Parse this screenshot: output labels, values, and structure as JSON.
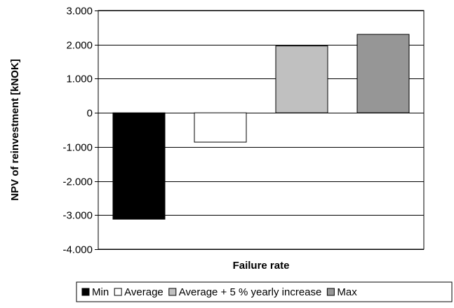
{
  "chart_data": {
    "type": "bar",
    "title": "",
    "xlabel": "Failure rate",
    "ylabel": "NPV of reinvestment [kNOK]",
    "ylim": [
      -4000,
      3000
    ],
    "ytick_values": [
      3000,
      2000,
      1000,
      0,
      -1000,
      -2000,
      -3000,
      -4000
    ],
    "ytick_labels": [
      "3.000",
      "2.000",
      "1.000",
      "0",
      "-1.000",
      "-2.000",
      "-3.000",
      "-4.000"
    ],
    "grid": "horizontal",
    "legend_position": "bottom",
    "series": [
      {
        "name": "Min",
        "values": [
          -3120
        ],
        "color": "#000000"
      },
      {
        "name": "Average",
        "values": [
          -860
        ],
        "color": "#ffffff"
      },
      {
        "name": "Average + 5 % yearly increase",
        "values": [
          1960
        ],
        "color": "#c0c0c0"
      },
      {
        "name": "Max",
        "values": [
          2300
        ],
        "color": "#969696"
      }
    ]
  }
}
